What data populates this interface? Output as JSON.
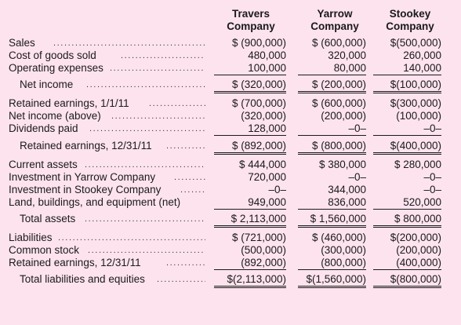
{
  "headers": {
    "travers": [
      "Travers",
      "Company"
    ],
    "yarrow": [
      "Yarrow",
      "Company"
    ],
    "stookey": [
      "Stookey",
      "Company"
    ]
  },
  "rows": [
    {
      "label": "Sales",
      "indent": 0,
      "values": [
        "$ (900,000)",
        "$ (600,000)",
        "$(500,000)"
      ]
    },
    {
      "label": "Cost of goods sold",
      "indent": 0,
      "values": [
        "480,000",
        "320,000",
        "260,000"
      ]
    },
    {
      "label": "Operating expenses",
      "indent": 0,
      "values": [
        "100,000",
        "80,000",
        "140,000"
      ]
    },
    {
      "label": "Net income",
      "indent": 1,
      "values": [
        "$ (320,000)",
        "$ (200,000)",
        "$(100,000)"
      ]
    },
    {
      "label": "Retained earnings, 1/1/11",
      "indent": 0,
      "values": [
        "$ (700,000)",
        "$ (600,000)",
        "$(300,000)"
      ]
    },
    {
      "label": "Net income (above)",
      "indent": 0,
      "values": [
        "(320,000)",
        "(200,000)",
        "(100,000)"
      ]
    },
    {
      "label": "Dividends paid",
      "indent": 0,
      "values": [
        "128,000",
        "–0–",
        "–0–"
      ]
    },
    {
      "label": "Retained earnings, 12/31/11",
      "indent": 1,
      "values": [
        "$ (892,000)",
        "$ (800,000)",
        "$(400,000)"
      ]
    },
    {
      "label": "Current assets",
      "indent": 0,
      "values": [
        "$  444,000",
        "$  380,000",
        "$ 280,000"
      ]
    },
    {
      "label": "Investment in Yarrow Company",
      "indent": 0,
      "values": [
        "720,000",
        "–0–",
        "–0–"
      ]
    },
    {
      "label": "Investment in Stookey Company",
      "indent": 0,
      "values": [
        "–0–",
        "344,000",
        "–0–"
      ]
    },
    {
      "label": "Land, buildings, and equipment (net)",
      "indent": 0,
      "values": [
        "949,000",
        "836,000",
        "520,000"
      ]
    },
    {
      "label": "Total assets",
      "indent": 1,
      "values": [
        "$ 2,113,000",
        "$ 1,560,000",
        "$ 800,000"
      ]
    },
    {
      "label": "Liabilities",
      "indent": 0,
      "values": [
        "$ (721,000)",
        "$ (460,000)",
        "$(200,000)"
      ]
    },
    {
      "label": "Common stock",
      "indent": 0,
      "values": [
        "(500,000)",
        "(300,000)",
        "(200,000)"
      ]
    },
    {
      "label": "Retained earnings, 12/31/11",
      "indent": 0,
      "values": [
        "(892,000)",
        "(800,000)",
        "(400,000)"
      ]
    },
    {
      "label": "Total liabilities and equities",
      "indent": 1,
      "values": [
        "$(2,113,000)",
        "$(1,560,000)",
        "$(800,000)"
      ]
    }
  ]
}
